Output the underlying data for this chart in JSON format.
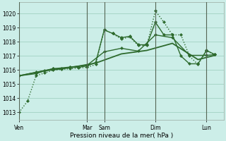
{
  "background_color": "#cceee8",
  "grid_color": "#99ccbb",
  "line_color": "#2d6a2d",
  "xlabel": "Pression niveau de la mer( hPa )",
  "ylim": [
    1012.5,
    1020.8
  ],
  "yticks": [
    1013,
    1014,
    1015,
    1016,
    1017,
    1018,
    1019,
    1020
  ],
  "day_labels": [
    "Ven",
    "Mar",
    "Sam",
    "Dim",
    "Lun"
  ],
  "day_x": [
    0,
    48,
    60,
    96,
    132
  ],
  "xlim": [
    0,
    144
  ],
  "series": [
    {
      "x": [
        0,
        6,
        12,
        18,
        24,
        30,
        36,
        42,
        48,
        54,
        60,
        66,
        72,
        78,
        84,
        90,
        96,
        102,
        108,
        114,
        120,
        126,
        132,
        138
      ],
      "y": [
        1013.0,
        1013.8,
        1015.6,
        1015.8,
        1016.0,
        1016.05,
        1016.1,
        1016.15,
        1016.2,
        1016.4,
        1018.85,
        1018.6,
        1018.2,
        1018.35,
        1017.75,
        1017.75,
        1020.2,
        1019.4,
        1018.5,
        1018.5,
        1017.0,
        1016.4,
        1017.35,
        1017.1
      ],
      "linestyle": "dotted",
      "linewidth": 1.0,
      "marker": "D",
      "markersize": 2.2
    },
    {
      "x": [
        0,
        12,
        18,
        24,
        30,
        36,
        42,
        48,
        54,
        60,
        66,
        72,
        78,
        84,
        90,
        96,
        102,
        108,
        114,
        120,
        126,
        132,
        138
      ],
      "y": [
        1015.6,
        1015.75,
        1015.95,
        1016.1,
        1016.1,
        1016.2,
        1016.2,
        1016.3,
        1016.55,
        1018.85,
        1018.6,
        1018.3,
        1018.4,
        1017.8,
        1017.8,
        1019.4,
        1018.5,
        1018.5,
        1017.0,
        1016.45,
        1016.45,
        1017.4,
        1017.1
      ],
      "linestyle": "solid",
      "linewidth": 1.0,
      "marker": "D",
      "markersize": 2.2
    },
    {
      "x": [
        0,
        12,
        24,
        36,
        48,
        60,
        72,
        84,
        96,
        108,
        120,
        132,
        138
      ],
      "y": [
        1015.6,
        1015.85,
        1016.1,
        1016.22,
        1016.35,
        1017.3,
        1017.55,
        1017.35,
        1018.5,
        1018.3,
        1017.05,
        1017.05,
        1017.1
      ],
      "linestyle": "solid",
      "linewidth": 1.0,
      "marker": "D",
      "markersize": 2.2
    },
    {
      "x": [
        0,
        18,
        36,
        54,
        72,
        90,
        108,
        126,
        138
      ],
      "y": [
        1015.6,
        1015.95,
        1016.18,
        1016.5,
        1017.15,
        1017.4,
        1017.9,
        1016.75,
        1017.05
      ],
      "linestyle": "solid",
      "linewidth": 1.3,
      "marker": null,
      "markersize": 0
    }
  ]
}
